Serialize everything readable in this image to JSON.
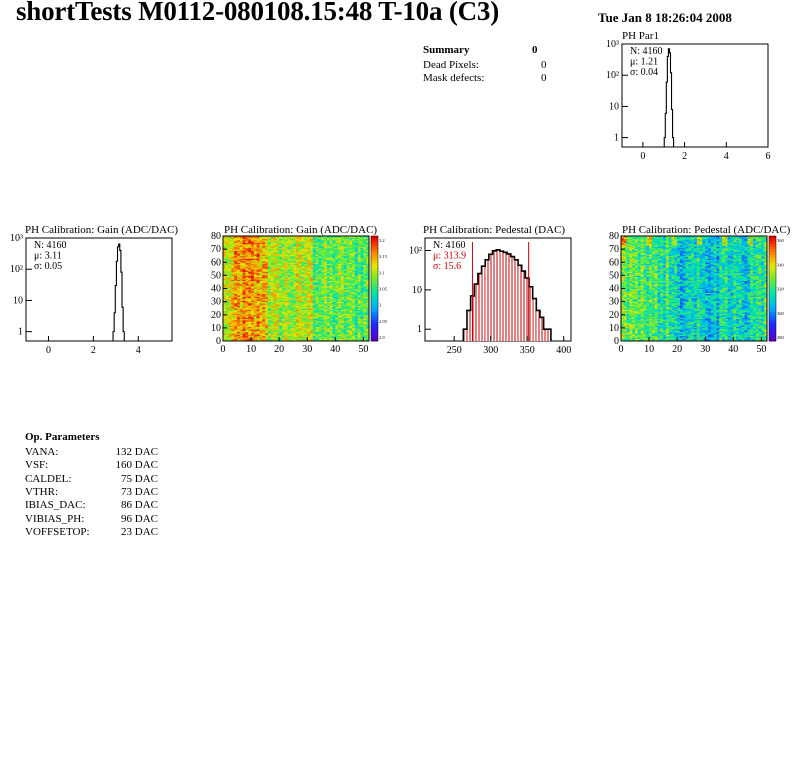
{
  "header": {
    "title": "shortTests M0112-080108.15:48 T-10a (C3)",
    "date": "Tue Jan  8 18:26:04 2008"
  },
  "summary": {
    "heading": "Summary",
    "heading_value": "0",
    "rows": [
      {
        "label": "Dead Pixels:",
        "value": "0"
      },
      {
        "label": "Mask defects:",
        "value": "0"
      }
    ]
  },
  "op_parameters": {
    "heading": "Op. Parameters",
    "rows": [
      {
        "label": "VANA:",
        "value": "132 DAC"
      },
      {
        "label": "VSF:",
        "value": "160 DAC"
      },
      {
        "label": "CALDEL:",
        "value": "75 DAC"
      },
      {
        "label": "VTHR:",
        "value": "73 DAC"
      },
      {
        "label": "IBIAS_DAC:",
        "value": "86 DAC"
      },
      {
        "label": "VIBIAS_PH:",
        "value": "96 DAC"
      },
      {
        "label": "VOFFSETOP:",
        "value": "23 DAC"
      }
    ]
  },
  "chart_data": [
    {
      "id": "ph-par1",
      "type": "histogram",
      "title": "PH Par1",
      "xlim": [
        -1,
        6
      ],
      "ylog": true,
      "xticks": [
        "0",
        "2",
        "4",
        "6"
      ],
      "yticks": [
        "1",
        "10",
        "10²",
        "10³"
      ],
      "stats": {
        "lines": [
          "N: 4160",
          "μ: 1.21",
          "σ: 0.04"
        ],
        "color": "#000000"
      },
      "x": [
        1.05,
        1.1,
        1.15,
        1.2,
        1.25,
        1.3,
        1.35,
        1.4,
        1.45
      ],
      "values": [
        1,
        6,
        60,
        400,
        700,
        520,
        120,
        8,
        1
      ],
      "fill": "none",
      "cut_lines": []
    },
    {
      "id": "gain-hist",
      "type": "histogram",
      "title": "PH Calibration: Gain (ADC/DAC)",
      "xlim": [
        -1,
        5.5
      ],
      "ylog": true,
      "xticks": [
        "0",
        "2",
        "4"
      ],
      "yticks": [
        "1",
        "10",
        "10²",
        "10³"
      ],
      "stats": {
        "lines": [
          "N: 4160",
          "μ: 3.11",
          "σ: 0.05"
        ],
        "color": "#000000"
      },
      "x": [
        2.9,
        2.95,
        3.0,
        3.05,
        3.1,
        3.15,
        3.2,
        3.25,
        3.3,
        3.35
      ],
      "values": [
        1,
        4,
        30,
        180,
        520,
        640,
        400,
        80,
        6,
        1
      ],
      "fill": "none",
      "cut_lines": []
    },
    {
      "id": "gain-map",
      "type": "heatmap",
      "title": "PH Calibration: Gain (ADC/DAC)",
      "xlim": [
        0,
        52
      ],
      "ylim": [
        0,
        80
      ],
      "xticks": [
        "0",
        "10",
        "20",
        "30",
        "40",
        "50"
      ],
      "yticks": [
        "0",
        "10",
        "20",
        "30",
        "40",
        "50",
        "60",
        "70",
        "80"
      ],
      "zlabels": [
        "3.2",
        "3.15",
        "3.1",
        "3.05",
        "3",
        "2.95",
        "2.9"
      ],
      "profile": "gain"
    },
    {
      "id": "pedestal-hist",
      "type": "histogram",
      "title": "PH Calibration: Pedestal (DAC)",
      "xlim": [
        210,
        410
      ],
      "ylog": true,
      "xticks": [
        "250",
        "300",
        "350",
        "400"
      ],
      "yticks": [
        "1",
        "10",
        "10²"
      ],
      "stats": {
        "lines": [
          "N: 4160",
          "μ: 313.9",
          "σ: 15.6"
        ],
        "color": "#cc0000",
        "first_color": "#000000"
      },
      "x": [
        265,
        270,
        275,
        280,
        285,
        290,
        295,
        300,
        305,
        310,
        315,
        320,
        325,
        330,
        335,
        340,
        345,
        350,
        355,
        360,
        365,
        370,
        375,
        380
      ],
      "values": [
        1,
        3,
        7,
        14,
        26,
        40,
        58,
        80,
        98,
        104,
        96,
        90,
        82,
        70,
        58,
        42,
        30,
        20,
        12,
        6,
        3,
        2,
        1,
        1
      ],
      "fill": "#c00000",
      "cut_lines": [
        275,
        352
      ]
    },
    {
      "id": "pedestal-map",
      "type": "heatmap",
      "title": "PH Calibration: Pedestal (ADC/DAC)",
      "xlim": [
        0,
        52
      ],
      "ylim": [
        0,
        80
      ],
      "xticks": [
        "0",
        "10",
        "20",
        "30",
        "40",
        "50"
      ],
      "yticks": [
        "0",
        "10",
        "20",
        "30",
        "40",
        "50",
        "60",
        "70",
        "80"
      ],
      "zlabels": [
        "360",
        "340",
        "320",
        "300",
        "280"
      ],
      "profile": "pedestal"
    }
  ]
}
